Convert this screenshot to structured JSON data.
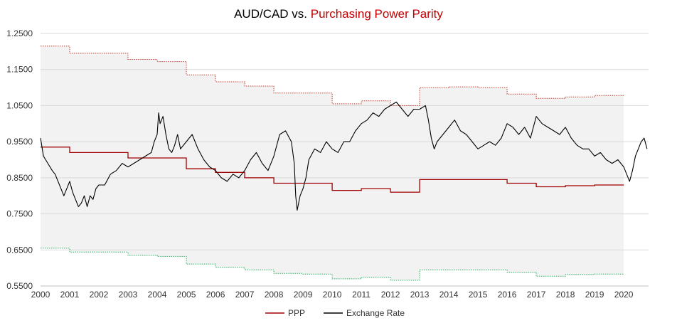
{
  "chart_data": {
    "type": "line",
    "title_part1": "AUD/CAD vs. ",
    "title_part2": "Purchasing Power Parity",
    "xlabel": "",
    "ylabel": "",
    "xlim": [
      2000,
      2020.85
    ],
    "ylim": [
      0.55,
      1.25
    ],
    "y_ticks": [
      "0.5500",
      "0.6500",
      "0.7500",
      "0.8500",
      "0.9500",
      "1.0500",
      "1.1500",
      "1.2500"
    ],
    "x_ticks": [
      "2000",
      "2001",
      "2002",
      "2003",
      "2004",
      "2005",
      "2006",
      "2007",
      "2008",
      "2009",
      "2010",
      "2011",
      "2012",
      "2013",
      "2014",
      "2015",
      "2016",
      "2017",
      "2018",
      "2019",
      "2020"
    ],
    "grid": "horizontal",
    "legend_position": "bottom",
    "colors": {
      "ppp": "#a00000",
      "exchange": "#000000",
      "upper_band": "#c0392b",
      "lower_band": "#27ae60",
      "band_fill": "#f2f2f2",
      "grid": "#d9d9d9"
    },
    "ppp_steps": [
      [
        2000.0,
        0.935
      ],
      [
        2001.0,
        0.92
      ],
      [
        2003.0,
        0.905
      ],
      [
        2005.0,
        0.875
      ],
      [
        2006.0,
        0.865
      ],
      [
        2007.0,
        0.85
      ],
      [
        2008.0,
        0.835
      ],
      [
        2010.0,
        0.815
      ],
      [
        2011.0,
        0.82
      ],
      [
        2012.0,
        0.81
      ],
      [
        2013.0,
        0.845
      ],
      [
        2016.0,
        0.835
      ],
      [
        2017.0,
        0.825
      ],
      [
        2018.0,
        0.828
      ],
      [
        2019.0,
        0.83
      ]
    ],
    "ppp_end": 2020.0,
    "upper_steps": [
      [
        2000.0,
        1.215
      ],
      [
        2001.0,
        1.195
      ],
      [
        2003.0,
        1.178
      ],
      [
        2004.0,
        1.172
      ],
      [
        2005.0,
        1.135
      ],
      [
        2006.0,
        1.116
      ],
      [
        2007.0,
        1.104
      ],
      [
        2008.0,
        1.085
      ],
      [
        2010.0,
        1.055
      ],
      [
        2011.0,
        1.063
      ],
      [
        2012.0,
        1.05
      ],
      [
        2013.0,
        1.1
      ],
      [
        2014.0,
        1.102
      ],
      [
        2015.0,
        1.1
      ],
      [
        2016.0,
        1.082
      ],
      [
        2017.0,
        1.07
      ],
      [
        2018.0,
        1.074
      ],
      [
        2019.0,
        1.078
      ]
    ],
    "lower_steps": [
      [
        2000.0,
        0.655
      ],
      [
        2001.0,
        0.644
      ],
      [
        2003.0,
        0.635
      ],
      [
        2004.0,
        0.632
      ],
      [
        2005.0,
        0.611
      ],
      [
        2006.0,
        0.602
      ],
      [
        2007.0,
        0.595
      ],
      [
        2008.0,
        0.585
      ],
      [
        2009.0,
        0.583
      ],
      [
        2010.0,
        0.57
      ],
      [
        2011.0,
        0.574
      ],
      [
        2012.0,
        0.566
      ],
      [
        2013.0,
        0.595
      ],
      [
        2016.0,
        0.588
      ],
      [
        2017.0,
        0.577
      ],
      [
        2018.0,
        0.582
      ],
      [
        2019.0,
        0.583
      ]
    ],
    "band_end": 2020.0,
    "series": [
      {
        "name": "PPP"
      },
      {
        "name": "Exchange Rate",
        "x": [
          2000.0,
          2000.1,
          2000.25,
          2000.4,
          2000.5,
          2000.6,
          2000.7,
          2000.8,
          2000.9,
          2001.0,
          2001.1,
          2001.2,
          2001.3,
          2001.4,
          2001.5,
          2001.6,
          2001.7,
          2001.8,
          2001.9,
          2002.0,
          2002.2,
          2002.4,
          2002.6,
          2002.8,
          2003.0,
          2003.2,
          2003.4,
          2003.6,
          2003.8,
          2003.9,
          2004.0,
          2004.05,
          2004.1,
          2004.2,
          2004.3,
          2004.4,
          2004.5,
          2004.6,
          2004.7,
          2004.8,
          2005.0,
          2005.2,
          2005.4,
          2005.6,
          2005.8,
          2006.0,
          2006.2,
          2006.4,
          2006.6,
          2006.8,
          2007.0,
          2007.2,
          2007.4,
          2007.6,
          2007.8,
          2008.0,
          2008.2,
          2008.4,
          2008.6,
          2008.7,
          2008.75,
          2008.8,
          2008.9,
          2009.0,
          2009.1,
          2009.2,
          2009.4,
          2009.6,
          2009.8,
          2010.0,
          2010.2,
          2010.4,
          2010.6,
          2010.8,
          2011.0,
          2011.2,
          2011.4,
          2011.6,
          2011.8,
          2012.0,
          2012.2,
          2012.4,
          2012.6,
          2012.8,
          2013.0,
          2013.2,
          2013.3,
          2013.4,
          2013.5,
          2013.6,
          2013.8,
          2014.0,
          2014.2,
          2014.4,
          2014.6,
          2014.8,
          2015.0,
          2015.2,
          2015.4,
          2015.6,
          2015.8,
          2016.0,
          2016.2,
          2016.4,
          2016.6,
          2016.8,
          2017.0,
          2017.2,
          2017.4,
          2017.6,
          2017.8,
          2018.0,
          2018.2,
          2018.4,
          2018.6,
          2018.8,
          2019.0,
          2019.2,
          2019.4,
          2019.6,
          2019.8,
          2020.0,
          2020.1,
          2020.2,
          2020.3,
          2020.4,
          2020.5,
          2020.6,
          2020.7,
          2020.8
        ],
        "values": [
          0.96,
          0.91,
          0.89,
          0.87,
          0.86,
          0.84,
          0.82,
          0.8,
          0.82,
          0.84,
          0.81,
          0.79,
          0.77,
          0.78,
          0.8,
          0.77,
          0.8,
          0.79,
          0.82,
          0.83,
          0.83,
          0.86,
          0.87,
          0.89,
          0.88,
          0.89,
          0.9,
          0.91,
          0.92,
          0.95,
          0.97,
          1.03,
          1.0,
          1.02,
          0.97,
          0.93,
          0.92,
          0.94,
          0.97,
          0.93,
          0.95,
          0.97,
          0.93,
          0.9,
          0.88,
          0.87,
          0.85,
          0.84,
          0.86,
          0.85,
          0.87,
          0.9,
          0.92,
          0.89,
          0.87,
          0.91,
          0.97,
          0.98,
          0.95,
          0.89,
          0.8,
          0.76,
          0.8,
          0.82,
          0.85,
          0.9,
          0.93,
          0.92,
          0.95,
          0.93,
          0.92,
          0.95,
          0.95,
          0.98,
          1.0,
          1.01,
          1.03,
          1.02,
          1.04,
          1.05,
          1.06,
          1.04,
          1.02,
          1.04,
          1.04,
          1.05,
          1.01,
          0.96,
          0.93,
          0.95,
          0.97,
          0.99,
          1.01,
          0.98,
          0.97,
          0.95,
          0.93,
          0.94,
          0.95,
          0.94,
          0.96,
          1.0,
          0.99,
          0.97,
          0.99,
          0.96,
          1.02,
          1.0,
          0.99,
          0.98,
          0.97,
          0.99,
          0.96,
          0.94,
          0.93,
          0.93,
          0.91,
          0.92,
          0.9,
          0.89,
          0.9,
          0.88,
          0.86,
          0.84,
          0.87,
          0.91,
          0.93,
          0.95,
          0.96,
          0.93
        ]
      }
    ]
  }
}
